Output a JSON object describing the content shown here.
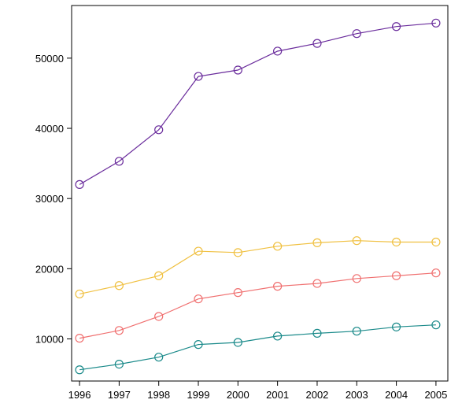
{
  "chart_data": {
    "type": "line",
    "title": "",
    "xlabel": "",
    "ylabel": "",
    "x": [
      "1996",
      "1997",
      "1998",
      "1999",
      "2000",
      "2001",
      "2002",
      "2003",
      "2004",
      "2005"
    ],
    "xlim": [
      1995.8,
      2005.3
    ],
    "ylim": [
      4000,
      57500
    ],
    "yticks": [
      10000,
      20000,
      30000,
      40000,
      50000
    ],
    "grid": false,
    "legend": "none",
    "series": [
      {
        "color": "#6a2c9c",
        "values": [
          32000,
          35300,
          39800,
          47400,
          48300,
          51000,
          52100,
          53500,
          54500,
          55000
        ]
      },
      {
        "color": "#f0c040",
        "values": [
          16400,
          17600,
          19000,
          22500,
          22300,
          23200,
          23700,
          24000,
          23800,
          23800
        ]
      },
      {
        "color": "#f07070",
        "values": [
          10100,
          11200,
          13200,
          15700,
          16600,
          17500,
          17900,
          18600,
          19000,
          19400
        ]
      },
      {
        "color": "#1a8a8a",
        "values": [
          5600,
          6400,
          7400,
          9200,
          9500,
          10400,
          10800,
          11100,
          11700,
          12000
        ]
      }
    ]
  }
}
